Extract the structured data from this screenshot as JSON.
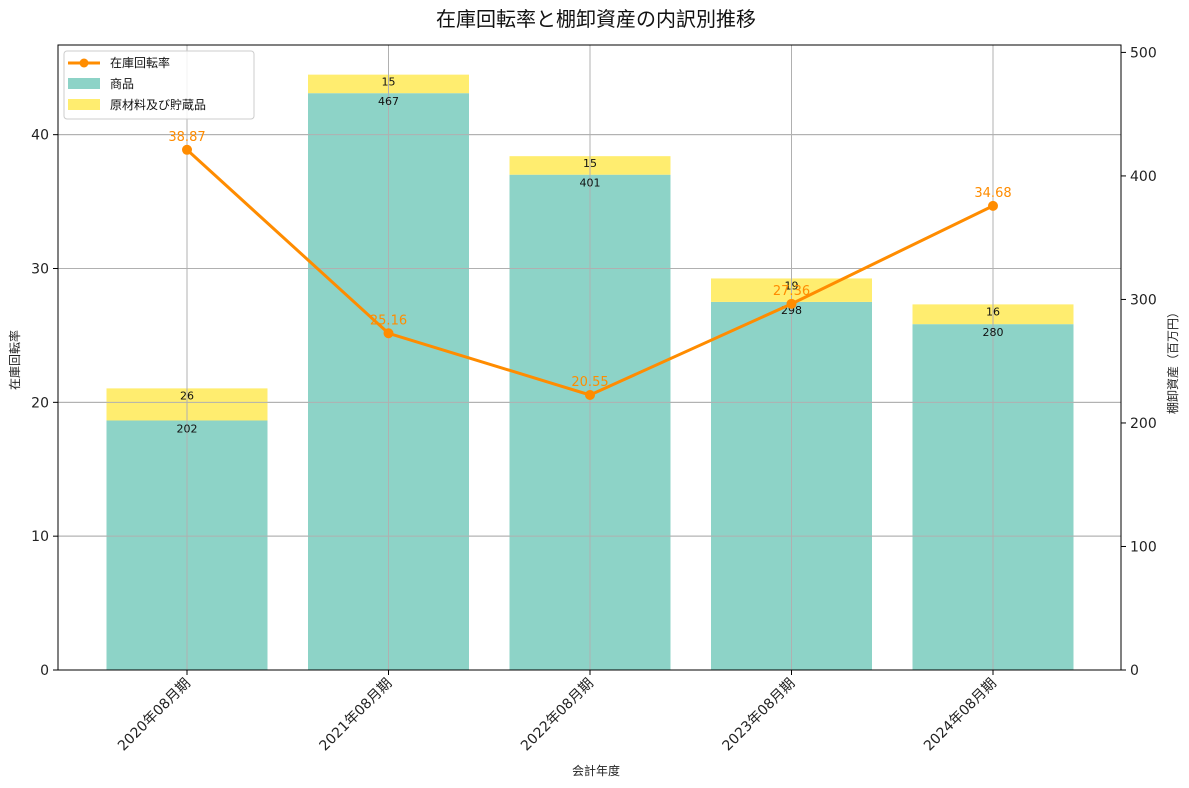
{
  "title": "在庫回転率と棚卸資産の内訳別推移",
  "xlabel": "会計年度",
  "ylabel_left": "在庫回転率",
  "ylabel_right": "棚卸資産（百万円）",
  "legend": [
    {
      "label": "在庫回転率",
      "type": "line",
      "color": "#ff8c00"
    },
    {
      "label": "商品",
      "type": "bar",
      "color": "#8dd3c7"
    },
    {
      "label": "原材料及び貯蔵品",
      "type": "bar",
      "color": "#ffed6f"
    }
  ],
  "colors": {
    "line": "#ff8c00",
    "bar_goods": "#8dd3c7",
    "bar_materials": "#ffed6f",
    "grid": "#b0b0b0"
  },
  "left_ticks": [
    "0",
    "10",
    "20",
    "30",
    "40"
  ],
  "right_ticks": [
    "0",
    "100",
    "200",
    "300",
    "400",
    "500"
  ],
  "chart_data": {
    "type": "bar",
    "title": "在庫回転率と棚卸資産の内訳別推移",
    "xlabel": "会計年度",
    "ylabel": "在庫回転率",
    "ylabel_right": "棚卸資産（百万円）",
    "categories": [
      "2020年08月期",
      "2021年08月期",
      "2022年08月期",
      "2023年08月期",
      "2024年08月期"
    ],
    "series": [
      {
        "name": "商品",
        "type": "bar",
        "axis": "right",
        "stacked": true,
        "color": "#8dd3c7",
        "values": [
          202,
          467,
          401,
          298,
          280
        ]
      },
      {
        "name": "原材料及び貯蔵品",
        "type": "bar",
        "axis": "right",
        "stacked": true,
        "color": "#ffed6f",
        "values": [
          26,
          15,
          15,
          19,
          16
        ]
      },
      {
        "name": "在庫回転率",
        "type": "line",
        "axis": "left",
        "color": "#ff8c00",
        "values": [
          38.87,
          25.16,
          20.55,
          27.36,
          34.68
        ]
      }
    ],
    "ylim_left": [
      0,
      46.7
    ],
    "ylim_right": [
      0,
      506
    ],
    "grid": true,
    "legend_position": "upper left"
  }
}
